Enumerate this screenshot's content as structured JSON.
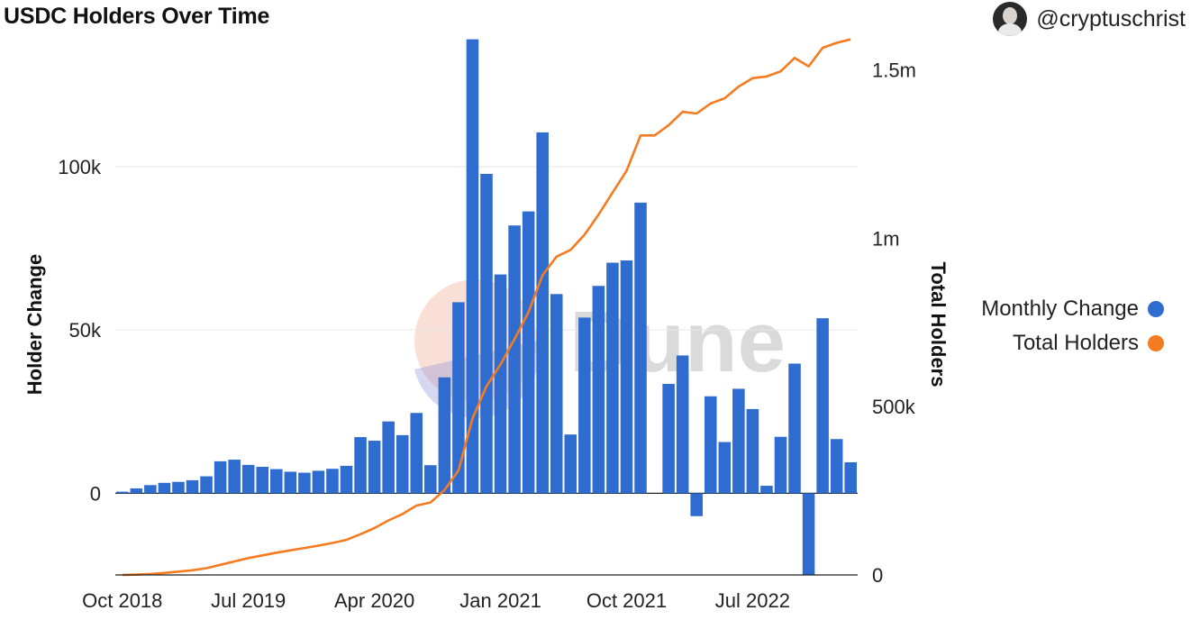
{
  "header": {
    "title": "USDC Holders Over Time",
    "author": "@cryptuschrist"
  },
  "watermark": "Dune",
  "colors": {
    "bars": "#2f6ccf",
    "line": "#f47b20",
    "grid": "#e6e6e6",
    "axis": "#222222"
  },
  "legend": {
    "placement": "right",
    "items": [
      {
        "label": "Monthly Change",
        "color": "#2f6ccf"
      },
      {
        "label": "Total Holders",
        "color": "#f47b20"
      }
    ]
  },
  "chart_data": {
    "type": "bar",
    "x_tick_labels": [
      "Oct 2018",
      "Jul 2019",
      "Apr 2020",
      "Jan 2021",
      "Oct 2021",
      "Jul 2022"
    ],
    "x_tick_indices": [
      0,
      9,
      18,
      27,
      36,
      45
    ],
    "y_left": {
      "label": "Holder Change",
      "min": -25000,
      "max": 140000,
      "ticks": [
        0,
        50000,
        100000
      ],
      "tick_labels": [
        "0",
        "50k",
        "100k"
      ]
    },
    "y_right": {
      "label": "Total Holders",
      "min": 0,
      "max": 1600000,
      "ticks": [
        0,
        500000,
        1000000,
        1500000
      ],
      "tick_labels": [
        "0",
        "500k",
        "1m",
        "1.5m"
      ]
    },
    "grid": true,
    "series": [
      {
        "name": "Monthly Change",
        "type": "bar",
        "values": [
          500,
          1500,
          2500,
          3200,
          3500,
          4000,
          5200,
          9800,
          10300,
          8700,
          8100,
          7400,
          6600,
          6300,
          6900,
          7500,
          8400,
          17200,
          16100,
          22000,
          17800,
          24600,
          8600,
          35500,
          58500,
          139000,
          97800,
          67000,
          82000,
          86300,
          110500,
          61000,
          18000,
          53800,
          63500,
          70600,
          71300,
          89000,
          0,
          33500,
          42200,
          -7000,
          29700,
          15700,
          32000,
          25800,
          2300,
          17300,
          39700,
          -25000,
          53600,
          16600,
          9500
        ]
      },
      {
        "name": "Total Holders",
        "type": "line",
        "values": [
          0,
          1000,
          3000,
          6000,
          10000,
          14000,
          20000,
          30000,
          40000,
          50000,
          58000,
          66000,
          73000,
          80000,
          87000,
          95000,
          104000,
          121000,
          139000,
          162000,
          181000,
          206000,
          215000,
          252000,
          310000,
          465000,
          560000,
          625000,
          700000,
          780000,
          890000,
          945000,
          965000,
          1010000,
          1070000,
          1135000,
          1200000,
          1305000,
          1305000,
          1335000,
          1375000,
          1370000,
          1400000,
          1415000,
          1450000,
          1475000,
          1480000,
          1495000,
          1535000,
          1510000,
          1565000,
          1580000,
          1590000
        ]
      }
    ]
  }
}
